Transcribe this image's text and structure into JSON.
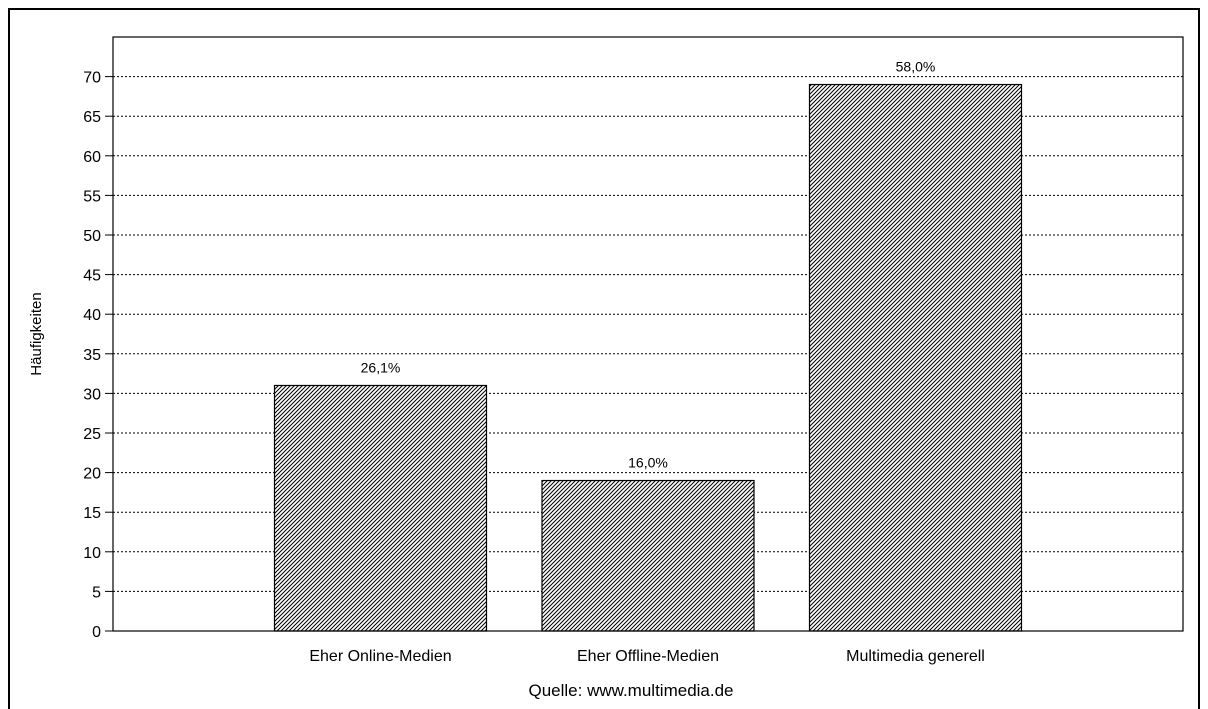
{
  "chart_data": {
    "type": "bar",
    "categories": [
      "Eher Online-Medien",
      "Eher Offline-Medien",
      "Multimedia generell"
    ],
    "values": [
      31,
      19,
      69
    ],
    "data_labels": [
      "26,1%",
      "16,0%",
      "58,0%"
    ],
    "ylabel": "Häufigkeiten",
    "xlabel": "Quelle: www.multimedia.de",
    "ylim": [
      0,
      75
    ],
    "yticks": [
      0,
      5,
      10,
      15,
      20,
      25,
      30,
      35,
      40,
      45,
      50,
      55,
      60,
      65,
      70
    ],
    "grid": true,
    "bar_fill": "diagonal-hatch",
    "colors": {
      "bar_stroke": "#000000",
      "hatch": "#000000",
      "background": "#ffffff",
      "grid": "#000000"
    }
  }
}
